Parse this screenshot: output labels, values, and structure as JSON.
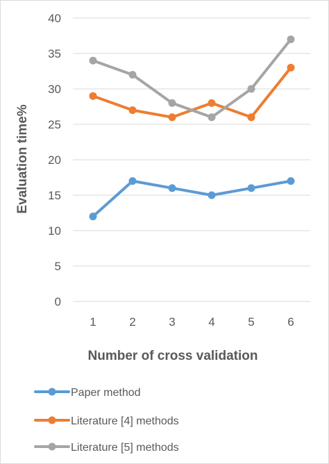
{
  "chart_data": {
    "type": "line",
    "title": "",
    "xlabel": "Number of cross validation",
    "ylabel": "Evaluation time%",
    "x": [
      1,
      2,
      3,
      4,
      5,
      6
    ],
    "x_tick_labels": [
      "1",
      "2",
      "3",
      "4",
      "5",
      "6"
    ],
    "ylim": [
      0,
      40
    ],
    "y_ticks": [
      0,
      5,
      10,
      15,
      20,
      25,
      30,
      35,
      40
    ],
    "y_tick_labels": [
      "0",
      "5",
      "10",
      "15",
      "20",
      "25",
      "30",
      "35",
      "40"
    ],
    "grid": "horizontal",
    "legend_position": "bottom",
    "series": [
      {
        "name": "Paper method",
        "color": "#5b9bd5",
        "values": [
          12,
          17,
          16,
          15,
          16,
          17
        ]
      },
      {
        "name": "Literature [4] methods",
        "color": "#ed7d31",
        "values": [
          29,
          27,
          26,
          28,
          26,
          33
        ]
      },
      {
        "name": "Literature [5] methods",
        "color": "#a5a5a5",
        "values": [
          34,
          32,
          28,
          26,
          30,
          37
        ]
      }
    ]
  }
}
